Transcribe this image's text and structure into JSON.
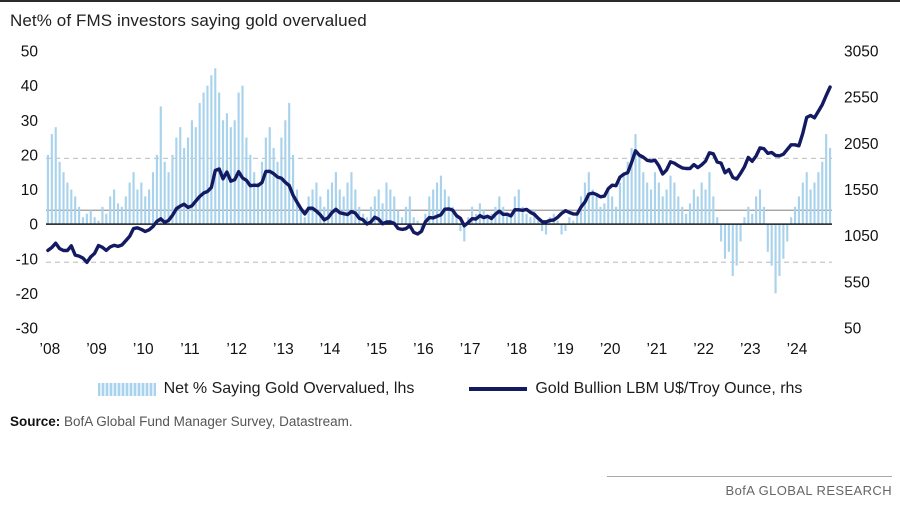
{
  "title": "Net% of FMS investors saying gold overvalued",
  "legend": [
    {
      "label": "Net % Saying Gold Overvalued, lhs",
      "swatch": "bar",
      "color": "#a9d3ec"
    },
    {
      "label": "Gold Bullion LBM U$/Troy Ounce, rhs",
      "swatch": "line",
      "color": "#141a62"
    }
  ],
  "source": {
    "label": "Source:",
    "text": "BofA Global Fund Manager Survey, Datastream."
  },
  "footer": "BofA GLOBAL RESEARCH",
  "colors": {
    "bar": "#a9d3ec",
    "line": "#141a62",
    "zero_line": "#1a1a1a",
    "ref_solid": "#9a9a9a",
    "ref_dashed": "#c8c8c8",
    "axis_text": "#111111"
  },
  "chart_data": {
    "type": "bar",
    "title": "Net% of FMS investors saying gold overvalued",
    "x_start_year": 2008,
    "x_tick_labels": [
      "’08",
      "’09",
      "’10",
      "’11",
      "’12",
      "’13",
      "’14",
      "’15",
      "’16",
      "’17",
      "’18",
      "’19",
      "’20",
      "’21",
      "’22",
      "’23",
      "’24"
    ],
    "left_axis": {
      "min": -30,
      "max": 50,
      "ticks": [
        50,
        40,
        30,
        20,
        10,
        0,
        -10,
        -20,
        -30
      ],
      "label": "Net % saying gold overvalued"
    },
    "right_axis": {
      "min": 50,
      "max": 3050,
      "ticks": [
        3050,
        2550,
        2050,
        1550,
        1050,
        550,
        50
      ],
      "label": "Gold Bullion LBM U$/Troy Ounce"
    },
    "reference_lines_left": {
      "solid": 4,
      "dashed": [
        19,
        -11
      ]
    },
    "grid": "horizontal-dashed",
    "legend_position": "bottom",
    "series": [
      {
        "name": "Net % Saying Gold Overvalued, lhs",
        "type": "bar",
        "axis": "left",
        "color": "#a9d3ec",
        "values": [
          20,
          26,
          28,
          18,
          15,
          12,
          10,
          8,
          5,
          2,
          3,
          4,
          2,
          1,
          5,
          3,
          8,
          10,
          6,
          5,
          8,
          12,
          15,
          10,
          12,
          8,
          10,
          15,
          20,
          34,
          18,
          15,
          20,
          25,
          28,
          22,
          25,
          30,
          28,
          35,
          38,
          40,
          43,
          45,
          38,
          30,
          32,
          28,
          30,
          38,
          40,
          25,
          20,
          15,
          12,
          18,
          25,
          28,
          22,
          18,
          25,
          30,
          35,
          20,
          10,
          5,
          2,
          8,
          10,
          12,
          8,
          5,
          10,
          12,
          15,
          10,
          8,
          12,
          15,
          10,
          5,
          3,
          2,
          5,
          8,
          10,
          6,
          12,
          10,
          8,
          4,
          2,
          5,
          8,
          2,
          1,
          -2,
          3,
          8,
          10,
          12,
          14,
          10,
          8,
          5,
          3,
          -2,
          -5,
          2,
          5,
          3,
          6,
          4,
          2,
          3,
          5,
          8,
          5,
          3,
          2,
          8,
          10,
          5,
          3,
          2,
          4,
          1,
          -2,
          -3,
          2,
          3,
          1,
          -3,
          -2,
          2,
          1,
          3,
          8,
          12,
          15,
          10,
          8,
          5,
          6,
          10,
          8,
          5,
          12,
          15,
          18,
          22,
          26,
          20,
          15,
          12,
          10,
          15,
          12,
          8,
          10,
          14,
          12,
          8,
          5,
          3,
          6,
          10,
          8,
          12,
          10,
          15,
          8,
          2,
          -5,
          -10,
          -8,
          -15,
          -12,
          -5,
          2,
          5,
          3,
          8,
          10,
          5,
          -8,
          -12,
          -20,
          -15,
          -10,
          -5,
          2,
          5,
          8,
          12,
          15,
          10,
          12,
          15,
          18,
          26,
          22
        ]
      },
      {
        "name": "Gold Bullion LBM U$/Troy Ounce, rhs",
        "type": "line",
        "axis": "right",
        "color": "#141a62",
        "values": [
          890,
          922,
          968,
          910,
          889,
          889,
          940,
          839,
          829,
          807,
          760,
          820,
          858,
          943,
          924,
          890,
          928,
          946,
          934,
          949,
          996,
          1043,
          1127,
          1135,
          1118,
          1095,
          1113,
          1149,
          1205,
          1233,
          1193,
          1216,
          1271,
          1342,
          1370,
          1391,
          1356,
          1373,
          1424,
          1474,
          1511,
          1529,
          1573,
          1756,
          1772,
          1666,
          1739,
          1640,
          1656,
          1743,
          1676,
          1650,
          1591,
          1597,
          1593,
          1626,
          1745,
          1747,
          1722,
          1685,
          1672,
          1628,
          1593,
          1487,
          1414,
          1343,
          1286,
          1347,
          1348,
          1316,
          1276,
          1221,
          1244,
          1301,
          1336,
          1299,
          1288,
          1279,
          1311,
          1296,
          1238,
          1222,
          1176,
          1199,
          1250,
          1227,
          1178,
          1198,
          1199,
          1182,
          1128,
          1118,
          1125,
          1159,
          1086,
          1068,
          1097,
          1200,
          1246,
          1242,
          1260,
          1276,
          1337,
          1340,
          1327,
          1266,
          1238,
          1157,
          1192,
          1234,
          1231,
          1266,
          1246,
          1260,
          1236,
          1283,
          1315,
          1280,
          1282,
          1264,
          1331,
          1330,
          1325,
          1334,
          1303,
          1281,
          1238,
          1201,
          1198,
          1215,
          1220,
          1250,
          1291,
          1320,
          1301,
          1286,
          1284,
          1359,
          1413,
          1500,
          1511,
          1495,
          1471,
          1479,
          1560,
          1597,
          1591,
          1683,
          1716,
          1732,
          1843,
          1969,
          1922,
          1900,
          1866,
          1858,
          1867,
          1808,
          1718,
          1762,
          1850,
          1835,
          1807,
          1784,
          1777,
          1777,
          1820,
          1787,
          1816,
          1856,
          1948,
          1937,
          1848,
          1836,
          1731,
          1765,
          1681,
          1664,
          1725,
          1797,
          1898,
          1855,
          1913,
          2000,
          1992,
          1942,
          1951,
          1918,
          1915,
          1932,
          1984,
          2034,
          2034,
          2023,
          2160,
          2331,
          2351,
          2327,
          2398,
          2470,
          2568,
          2660
        ]
      }
    ]
  }
}
